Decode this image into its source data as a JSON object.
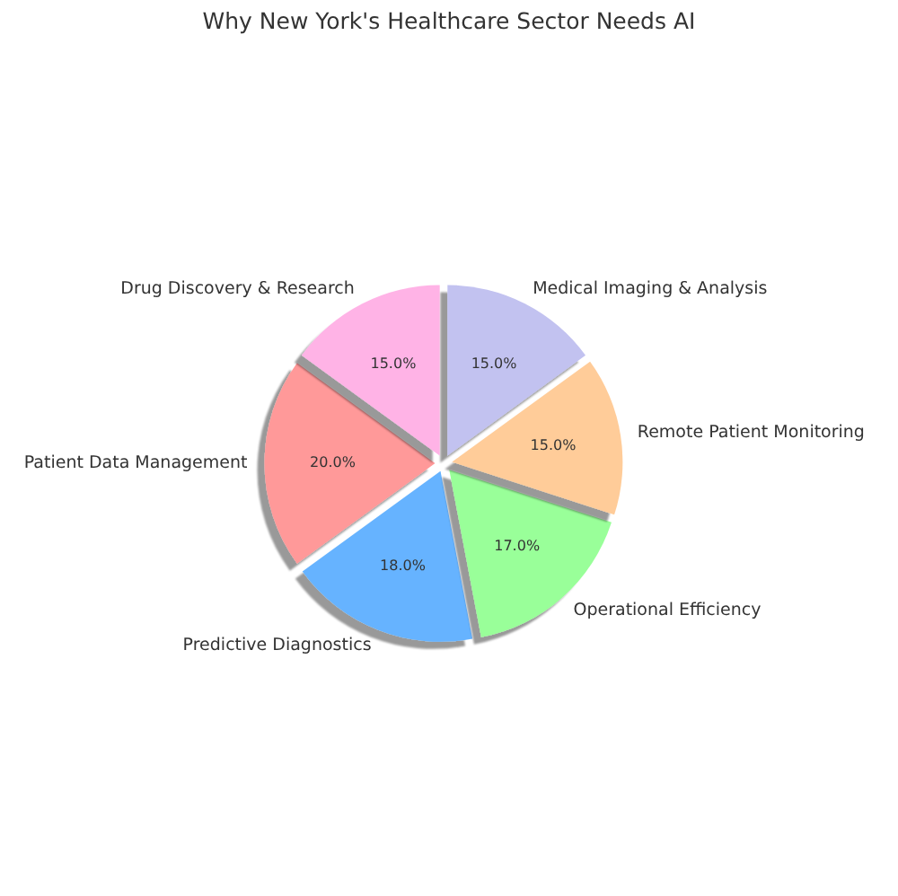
{
  "chart_data": {
    "type": "pie",
    "title": "Why New York's Healthcare Sector Needs AI",
    "categories": [
      "Patient Data Management",
      "Predictive Diagnostics",
      "Operational Efficiency",
      "Remote Patient Monitoring",
      "Medical Imaging & Analysis",
      "Drug Discovery & Research"
    ],
    "values": [
      20,
      18,
      17,
      15,
      15,
      15
    ],
    "value_labels": [
      "20.0%",
      "18.0%",
      "17.0%",
      "15.0%",
      "15.0%",
      "15.0%"
    ],
    "colors": [
      "#ff9999",
      "#66b3ff",
      "#99ff99",
      "#ffcc99",
      "#c2c2f0",
      "#ffb3e6"
    ]
  }
}
